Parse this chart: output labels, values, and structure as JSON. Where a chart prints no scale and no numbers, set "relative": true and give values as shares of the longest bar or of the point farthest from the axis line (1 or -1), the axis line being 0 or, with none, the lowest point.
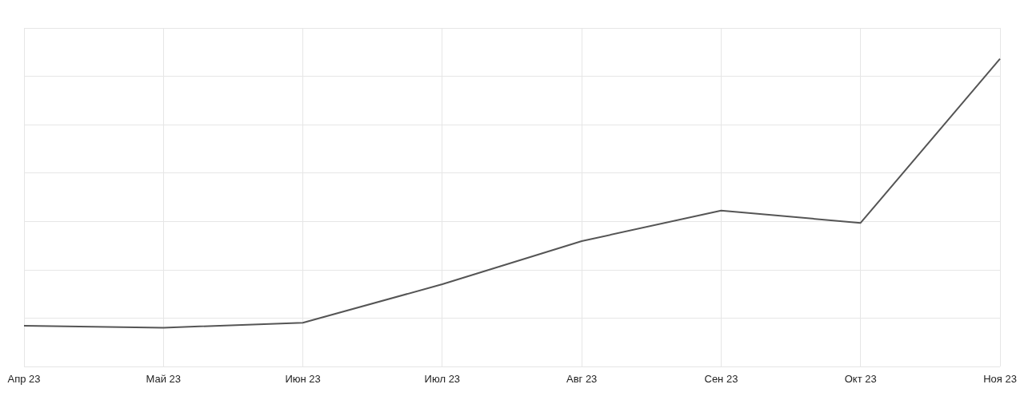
{
  "chart_data": {
    "type": "line",
    "relative": true,
    "grid": true,
    "legend": false,
    "marker": "none",
    "line_style": "solid",
    "categories": [
      "Апр 23",
      "Май 23",
      "Июн 23",
      "Июл 23",
      "Авг 23",
      "Сен 23",
      "Окт 23",
      "Ноя 23"
    ],
    "series": [
      {
        "color": "#555555",
        "values": [
          0.133,
          0.127,
          0.143,
          0.268,
          0.408,
          0.507,
          0.467,
          1
        ]
      }
    ]
  }
}
